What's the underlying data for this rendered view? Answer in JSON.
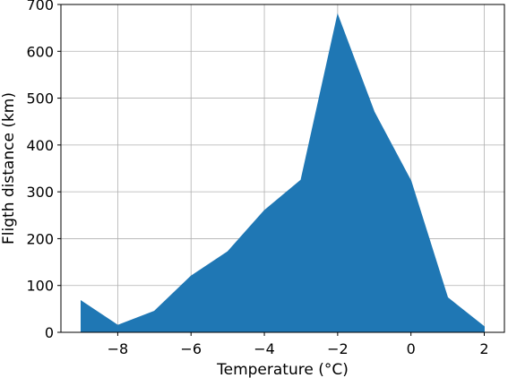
{
  "chart_data": {
    "type": "area",
    "title": "",
    "xlabel": "Temperature (°C)",
    "ylabel": "Fligth distance (km)",
    "xlim": [
      -9.55,
      2.55
    ],
    "ylim": [
      0,
      700
    ],
    "grid": true,
    "fill_color": "#1f77b4",
    "x_ticks": [
      -8,
      -6,
      -4,
      -2,
      0,
      2
    ],
    "x_tick_labels": [
      "−8",
      "−6",
      "−4",
      "−2",
      "0",
      "2"
    ],
    "y_ticks": [
      0,
      100,
      200,
      300,
      400,
      500,
      600,
      700
    ],
    "y_tick_labels": [
      "0",
      "100",
      "200",
      "300",
      "400",
      "500",
      "600",
      "700"
    ],
    "x": [
      -9,
      -8,
      -7,
      -6,
      -5,
      -4,
      -3,
      -2,
      -1,
      0,
      1,
      2
    ],
    "y": [
      67,
      15,
      45,
      120,
      172,
      260,
      325,
      678,
      470,
      323,
      74,
      12
    ]
  }
}
